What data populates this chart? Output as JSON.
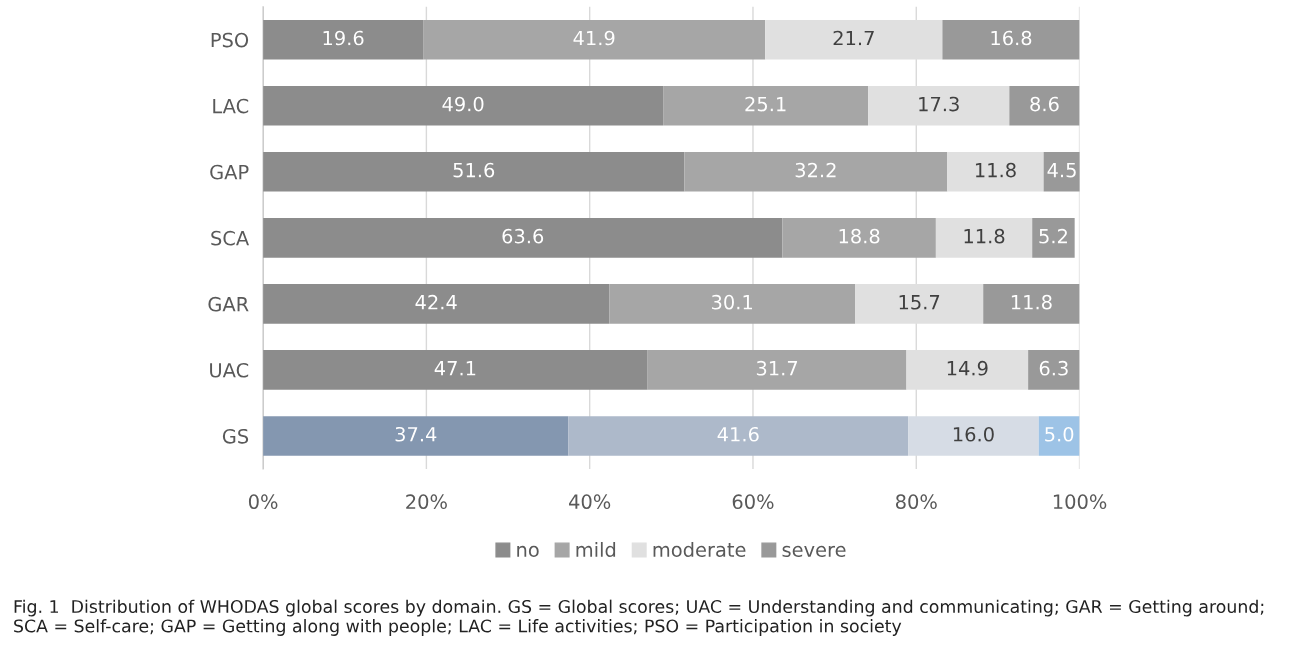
{
  "chart_data": {
    "type": "bar",
    "orientation": "horizontal",
    "stacked": true,
    "categories": [
      "PSO",
      "LAC",
      "GAP",
      "SCA",
      "GAR",
      "UAC",
      "GS"
    ],
    "series": [
      {
        "name": "no",
        "color": "#8c8c8c",
        "colors": [
          "#8c8c8c",
          "#8c8c8c",
          "#8c8c8c",
          "#8c8c8c",
          "#8c8c8c",
          "#8c8c8c",
          "#8497b0"
        ],
        "values": [
          19.6,
          49.0,
          51.6,
          63.6,
          42.4,
          47.1,
          37.4
        ],
        "value_labels": [
          "19.6",
          "49.0",
          "51.6",
          "63.6",
          "42.4",
          "47.1",
          "37.4"
        ]
      },
      {
        "name": "mild",
        "color": "#a6a6a6",
        "colors": [
          "#a6a6a6",
          "#a6a6a6",
          "#a6a6a6",
          "#a6a6a6",
          "#a6a6a6",
          "#a6a6a6",
          "#adb9ca"
        ],
        "values": [
          41.9,
          25.1,
          32.2,
          18.8,
          30.1,
          31.7,
          41.6
        ],
        "value_labels": [
          "41.9",
          "25.1",
          "32.2",
          "18.8",
          "30.1",
          "31.7",
          "41.6"
        ]
      },
      {
        "name": "moderate",
        "color": "#e0e0e0",
        "colors": [
          "#e0e0e0",
          "#e0e0e0",
          "#e0e0e0",
          "#e0e0e0",
          "#e0e0e0",
          "#e0e0e0",
          "#d6dce5"
        ],
        "values": [
          21.7,
          17.3,
          11.8,
          11.8,
          15.7,
          14.9,
          16.0
        ],
        "value_labels": [
          "21.7",
          "17.3",
          "11.8",
          "11.8",
          "15.7",
          "14.9",
          "16.0"
        ]
      },
      {
        "name": "severe",
        "color": "#999999",
        "colors": [
          "#999999",
          "#999999",
          "#999999",
          "#999999",
          "#999999",
          "#999999",
          "#9dc3e6"
        ],
        "values": [
          16.8,
          8.6,
          4.5,
          5.2,
          11.8,
          6.3,
          5.0
        ],
        "value_labels": [
          "16.8",
          "8.6",
          "4.5",
          "5.2",
          "11.8",
          "6.3",
          "5.0"
        ]
      }
    ],
    "xlim": [
      0,
      100
    ],
    "xticks": [
      {
        "value": 0,
        "label": "0%"
      },
      {
        "value": 20,
        "label": "20%"
      },
      {
        "value": 40,
        "label": "40%"
      },
      {
        "value": 60,
        "label": "60%"
      },
      {
        "value": 80,
        "label": "80%"
      },
      {
        "value": 100,
        "label": "100%"
      }
    ],
    "grid": "x",
    "legend": "bottom",
    "annotations": [
      "Fig. 1  Distribution of WHODAS global scores by domain. GS = Global scores; UAC = Understanding and communicating; GAR = Getting around; SCA = Self-care; GAP = Getting along with people; LAC = Life activities; PSO = Participation in society"
    ]
  }
}
